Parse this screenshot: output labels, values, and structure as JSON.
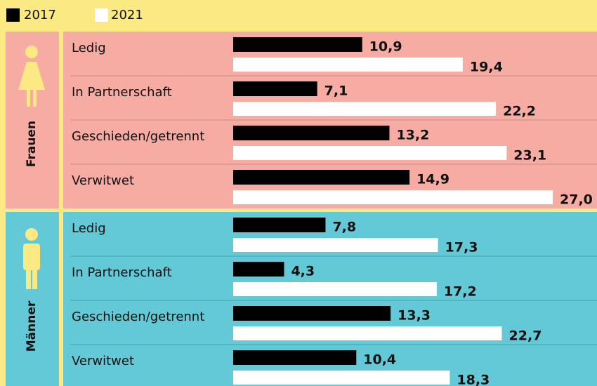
{
  "chart_data": [
    {
      "type": "bar",
      "group": "Frauen",
      "panel_color": "#f6aca2",
      "categories": [
        "Ledig",
        "In Partnerschaft",
        "Geschieden/getrennt",
        "Verwitwet"
      ],
      "series": [
        {
          "name": "2017",
          "color": "#000000",
          "values": [
            10.9,
            7.1,
            13.2,
            14.9
          ],
          "value_labels": [
            "10,9",
            "7,1",
            "13,2",
            "14,9"
          ]
        },
        {
          "name": "2021",
          "color": "#ffffff",
          "values": [
            19.4,
            22.2,
            23.1,
            27.0
          ],
          "value_labels": [
            "19,4",
            "22,2",
            "23,1",
            "27,0"
          ]
        }
      ]
    },
    {
      "type": "bar",
      "group": "Männer",
      "panel_color": "#63c9d6",
      "categories": [
        "Ledig",
        "In Partnerschaft",
        "Geschieden/getrennt",
        "Verwitwet"
      ],
      "series": [
        {
          "name": "2017",
          "color": "#000000",
          "values": [
            7.8,
            4.3,
            13.3,
            10.4
          ],
          "value_labels": [
            "7,8",
            "4,3",
            "13,3",
            "10,4"
          ]
        },
        {
          "name": "2021",
          "color": "#ffffff",
          "values": [
            17.3,
            17.2,
            22.7,
            18.3
          ],
          "value_labels": [
            "17,3",
            "17,2",
            "22,7",
            "18,3"
          ]
        }
      ]
    }
  ]
}
